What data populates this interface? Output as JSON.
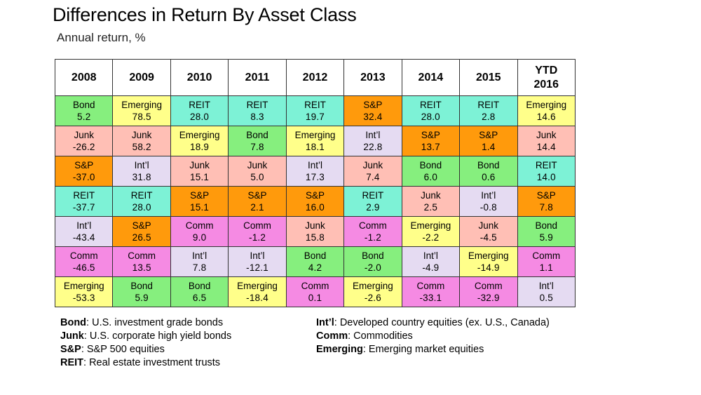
{
  "title": "Differences in Return By Asset Class",
  "subtitle": "Annual return, %",
  "colors": {
    "Bond": "#86ef7e",
    "Emerging": "#ffff8a",
    "REIT": "#7df2d6",
    "S&P": "#ff9a0c",
    "Junk": "#ffbfb5",
    "Int’l": "#e5dbf2",
    "Comm": "#f58ae3"
  },
  "chart_data": {
    "type": "table",
    "title": "Differences in Return By Asset Class",
    "subtitle": "Annual return, %",
    "columns": [
      "2008",
      "2009",
      "2010",
      "2011",
      "2012",
      "2013",
      "2014",
      "2015",
      "YTD 2016"
    ],
    "column_headers": [
      {
        "line1": "2008",
        "line2": ""
      },
      {
        "line1": "2009",
        "line2": ""
      },
      {
        "line1": "2010",
        "line2": ""
      },
      {
        "line1": "2011",
        "line2": ""
      },
      {
        "line1": "2012",
        "line2": ""
      },
      {
        "line1": "2013",
        "line2": ""
      },
      {
        "line1": "2014",
        "line2": ""
      },
      {
        "line1": "2015",
        "line2": ""
      },
      {
        "line1": "YTD",
        "line2": "2016"
      }
    ],
    "rows": [
      [
        {
          "asset": "Bond",
          "value": "5.2"
        },
        {
          "asset": "Emerging",
          "value": "78.5"
        },
        {
          "asset": "REIT",
          "value": "28.0"
        },
        {
          "asset": "REIT",
          "value": "8.3"
        },
        {
          "asset": "REIT",
          "value": "19.7"
        },
        {
          "asset": "S&P",
          "value": "32.4"
        },
        {
          "asset": "REIT",
          "value": "28.0"
        },
        {
          "asset": "REIT",
          "value": "2.8"
        },
        {
          "asset": "Emerging",
          "value": "14.6"
        }
      ],
      [
        {
          "asset": "Junk",
          "value": "-26.2"
        },
        {
          "asset": "Junk",
          "value": "58.2"
        },
        {
          "asset": "Emerging",
          "value": "18.9"
        },
        {
          "asset": "Bond",
          "value": "7.8"
        },
        {
          "asset": "Emerging",
          "value": "18.1"
        },
        {
          "asset": "Int’l",
          "value": "22.8"
        },
        {
          "asset": "S&P",
          "value": "13.7"
        },
        {
          "asset": "S&P",
          "value": "1.4"
        },
        {
          "asset": "Junk",
          "value": "14.4"
        }
      ],
      [
        {
          "asset": "S&P",
          "value": "-37.0"
        },
        {
          "asset": "Int’l",
          "value": "31.8"
        },
        {
          "asset": "Junk",
          "value": "15.1"
        },
        {
          "asset": "Junk",
          "value": "5.0"
        },
        {
          "asset": "Int’l",
          "value": "17.3"
        },
        {
          "asset": "Junk",
          "value": "7.4"
        },
        {
          "asset": "Bond",
          "value": "6.0"
        },
        {
          "asset": "Bond",
          "value": "0.6"
        },
        {
          "asset": "REIT",
          "value": "14.0"
        }
      ],
      [
        {
          "asset": "REIT",
          "value": "-37.7"
        },
        {
          "asset": "REIT",
          "value": "28.0"
        },
        {
          "asset": "S&P",
          "value": "15.1"
        },
        {
          "asset": "S&P",
          "value": "2.1"
        },
        {
          "asset": "S&P",
          "value": "16.0"
        },
        {
          "asset": "REIT",
          "value": "2.9"
        },
        {
          "asset": "Junk",
          "value": "2.5"
        },
        {
          "asset": "Int’l",
          "value": "-0.8"
        },
        {
          "asset": "S&P",
          "value": "7.8"
        }
      ],
      [
        {
          "asset": "Int’l",
          "value": "-43.4"
        },
        {
          "asset": "S&P",
          "value": "26.5"
        },
        {
          "asset": "Comm",
          "value": "9.0"
        },
        {
          "asset": "Comm",
          "value": "-1.2"
        },
        {
          "asset": "Junk",
          "value": "15.8"
        },
        {
          "asset": "Comm",
          "value": "-1.2"
        },
        {
          "asset": "Emerging",
          "value": "-2.2"
        },
        {
          "asset": "Junk",
          "value": "-4.5"
        },
        {
          "asset": "Bond",
          "value": "5.9"
        }
      ],
      [
        {
          "asset": "Comm",
          "value": "-46.5"
        },
        {
          "asset": "Comm",
          "value": "13.5"
        },
        {
          "asset": "Int’l",
          "value": "7.8"
        },
        {
          "asset": "Int’l",
          "value": "-12.1"
        },
        {
          "asset": "Bond",
          "value": "4.2"
        },
        {
          "asset": "Bond",
          "value": "-2.0"
        },
        {
          "asset": "Int’l",
          "value": "-4.9"
        },
        {
          "asset": "Emerging",
          "value": "-14.9"
        },
        {
          "asset": "Comm",
          "value": "1.1"
        }
      ],
      [
        {
          "asset": "Emerging",
          "value": "-53.3"
        },
        {
          "asset": "Bond",
          "value": "5.9"
        },
        {
          "asset": "Bond",
          "value": "6.5"
        },
        {
          "asset": "Emerging",
          "value": "-18.4"
        },
        {
          "asset": "Comm",
          "value": "0.1"
        },
        {
          "asset": "Emerging",
          "value": "-2.6"
        },
        {
          "asset": "Comm",
          "value": "-33.1"
        },
        {
          "asset": "Comm",
          "value": "-32.9"
        },
        {
          "asset": "Int’l",
          "value": "0.5"
        }
      ]
    ]
  },
  "legend": {
    "left": [
      {
        "key": "Bond",
        "desc": ": U.S. investment grade bonds"
      },
      {
        "key": "Junk",
        "desc": ": U.S. corporate high yield bonds"
      },
      {
        "key": "S&P",
        "desc": ": S&P 500 equities"
      },
      {
        "key": "REIT",
        "desc": ": Real estate investment trusts"
      }
    ],
    "right": [
      {
        "key": "Int’l",
        "desc": ": Developed country equities (ex. U.S., Canada)"
      },
      {
        "key": "Comm",
        "desc": ": Commodities"
      },
      {
        "key": "Emerging",
        "desc": ": Emerging market equities"
      }
    ]
  }
}
